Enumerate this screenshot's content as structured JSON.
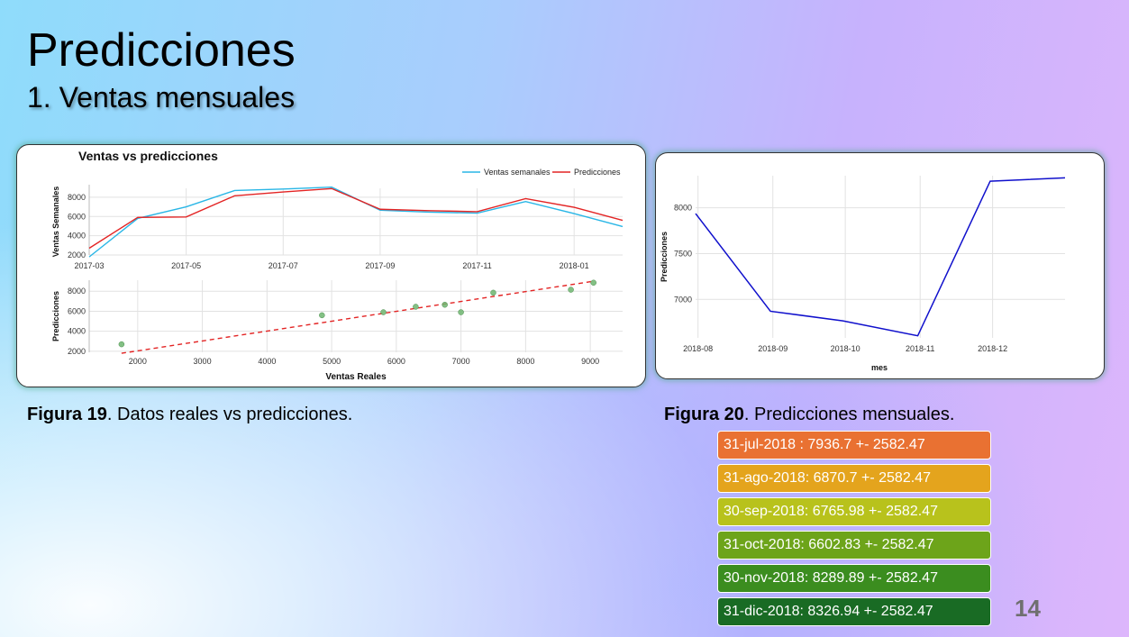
{
  "slide": {
    "title": "Predicciones",
    "subtitle": "1. Ventas mensuales",
    "page_number": "14"
  },
  "captions": {
    "fig19_label": "Figura 19",
    "fig19_text": ". Datos reales vs predicciones.",
    "fig20_label": "Figura 20",
    "fig20_text": ". Predicciones mensuales."
  },
  "predictions": [
    {
      "text": "31-jul-2018 : 7936.7 +- 2582.47",
      "color": "#e97132"
    },
    {
      "text": "31-ago-2018: 6870.7 +- 2582.47",
      "color": "#e4a41d"
    },
    {
      "text": "30-sep-2018: 6765.98 +- 2582.47",
      "color": "#b8c21c"
    },
    {
      "text": "31-oct-2018: 6602.83 +- 2582.47",
      "color": "#6da41a"
    },
    {
      "text": "30-nov-2018: 8289.89 +- 2582.47",
      "color": "#3b8d1f"
    },
    {
      "text": "31-dic-2018: 8326.94 +- 2582.47",
      "color": "#196b24"
    }
  ],
  "chart_data": [
    {
      "type": "line",
      "title": "Ventas vs predicciones",
      "ylabel": "Ventas Semanales",
      "xlabel": "",
      "x": [
        "2017-03",
        "2017-04",
        "2017-05",
        "2017-06",
        "2017-07",
        "2017-08",
        "2017-09",
        "2017-10",
        "2017-11",
        "2017-12",
        "2018-01",
        "2018-02"
      ],
      "x_ticks": [
        "2017-03",
        "2017-05",
        "2017-07",
        "2017-09",
        "2017-11",
        "2018-01"
      ],
      "y_ticks": [
        2000,
        4000,
        6000,
        8000
      ],
      "ylim": [
        2000,
        9300
      ],
      "series": [
        {
          "name": "Ventas semanales",
          "color": "#29b6e6",
          "values": [
            1800,
            5800,
            7000,
            8700,
            8850,
            9050,
            6650,
            6450,
            6350,
            7550,
            6300,
            4950
          ]
        },
        {
          "name": "Predicciones",
          "color": "#e32424",
          "values": [
            2700,
            5900,
            5950,
            8150,
            8550,
            8900,
            6750,
            6600,
            6500,
            7850,
            6950,
            5600
          ]
        }
      ],
      "legend": "top-right",
      "grid": true
    },
    {
      "type": "scatter",
      "xlabel": "Ventas Reales",
      "ylabel": "Predicciones",
      "x_ticks": [
        2000,
        3000,
        4000,
        5000,
        6000,
        7000,
        8000,
        9000
      ],
      "y_ticks": [
        2000,
        4000,
        6000,
        8000
      ],
      "xlim": [
        1250,
        9500
      ],
      "ylim": [
        1900,
        9100
      ],
      "points": [
        {
          "x": 1750,
          "y": 2700
        },
        {
          "x": 4850,
          "y": 5600
        },
        {
          "x": 5800,
          "y": 5900
        },
        {
          "x": 6300,
          "y": 6450
        },
        {
          "x": 6750,
          "y": 6650
        },
        {
          "x": 7000,
          "y": 5900
        },
        {
          "x": 7500,
          "y": 7850
        },
        {
          "x": 8700,
          "y": 8150
        },
        {
          "x": 9050,
          "y": 8850
        }
      ],
      "trend_line": {
        "x": [
          1750,
          9050
        ],
        "y": [
          1800,
          9000
        ],
        "color": "#e32424",
        "style": "dashed"
      },
      "point_color": "#6db56f",
      "grid": true
    },
    {
      "type": "line",
      "xlabel": "mes",
      "ylabel": "Predicciones",
      "x": [
        "2018-07-31",
        "2018-08-31",
        "2018-09-30",
        "2018-10-31",
        "2018-11-30",
        "2018-12-31"
      ],
      "x_ticks": [
        "2018-08",
        "2018-09",
        "2018-10",
        "2018-11",
        "2018-12"
      ],
      "y_ticks": [
        7000,
        7500,
        8000
      ],
      "ylim": [
        6580,
        8350
      ],
      "series": [
        {
          "color": "#1010cc",
          "values": [
            7936.7,
            6870.7,
            6765.98,
            6602.83,
            8289.89,
            8326.94
          ]
        }
      ],
      "grid": true
    }
  ]
}
